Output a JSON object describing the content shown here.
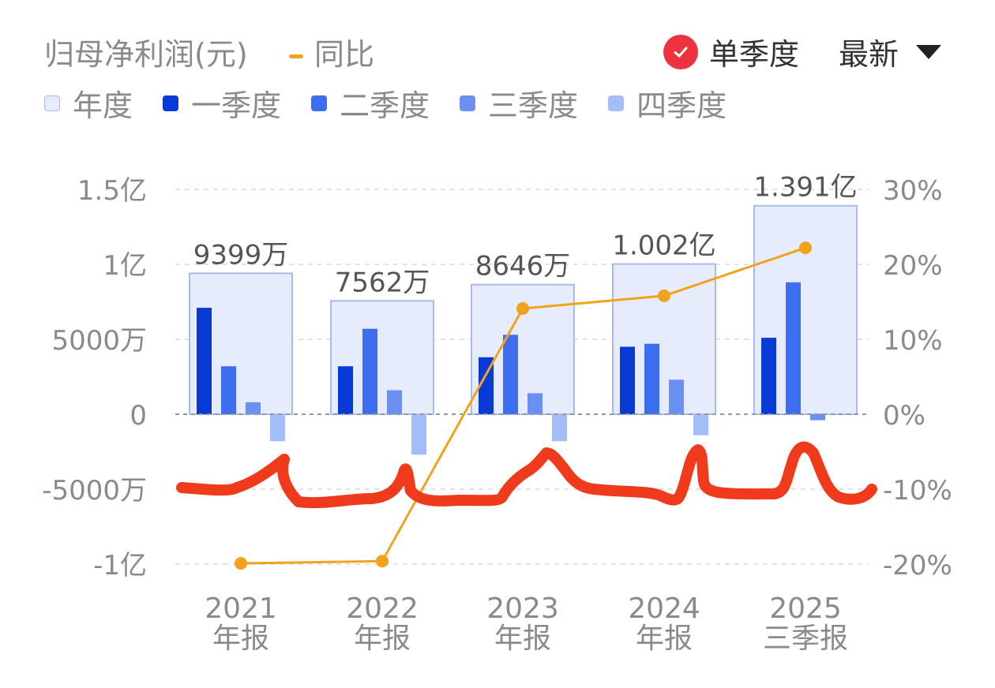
{
  "header": {
    "title": "归母净利润(元)",
    "yoy_label": "同比",
    "single_quarter_label": "单季度",
    "latest_label": "最新"
  },
  "legend": [
    {
      "label": "年度",
      "color": "#e6ecfb",
      "border": "#a9bce6"
    },
    {
      "label": "一季度",
      "color": "#0a3ad6"
    },
    {
      "label": "二季度",
      "color": "#3e6ef0"
    },
    {
      "label": "三季度",
      "color": "#6a90f2"
    },
    {
      "label": "四季度",
      "color": "#a3bdf8"
    }
  ],
  "colors": {
    "annual_fill": "#e6ecfb",
    "annual_border": "#a9bce6",
    "q1": "#0a3ad6",
    "q2": "#3e6ef0",
    "q3": "#6a90f2",
    "q4": "#a3bdf8",
    "yoy_line": "#f2a31c",
    "check_red": "#ee3340",
    "annotation_red": "#f03a1c"
  },
  "chart_data": {
    "type": "bar",
    "categories": [
      "2021\n年报",
      "2022\n年报",
      "2023\n年报",
      "2024\n年报",
      "2025\n三季报"
    ],
    "left_axis": {
      "unit": "元",
      "ylim": [
        -100000000,
        150000000
      ],
      "ticks": [
        150000000,
        100000000,
        50000000,
        0,
        -50000000,
        -100000000
      ],
      "tick_labels": [
        "1.5亿",
        "1亿",
        "5000万",
        "0",
        "-5000万",
        "-1亿"
      ]
    },
    "right_axis": {
      "unit": "%",
      "ylim": [
        -20,
        30
      ],
      "ticks": [
        30,
        20,
        10,
        0,
        -10,
        -20
      ],
      "tick_labels": [
        "30%",
        "20%",
        "10%",
        "0%",
        "-10%",
        "-20%"
      ]
    },
    "annual": {
      "values": [
        93990000,
        75620000,
        86460000,
        100200000,
        139100000
      ],
      "labels": [
        "9399万",
        "7562万",
        "8646万",
        "1.002亿",
        "1.391亿"
      ]
    },
    "series": [
      {
        "name": "一季度",
        "values": [
          71000000,
          32000000,
          38000000,
          45000000,
          51000000
        ]
      },
      {
        "name": "二季度",
        "values": [
          32000000,
          57000000,
          53000000,
          47000000,
          88000000
        ]
      },
      {
        "name": "三季度",
        "values": [
          8000000,
          16000000,
          14000000,
          23000000,
          -4000000
        ]
      },
      {
        "name": "四季度",
        "values": [
          -18000000,
          -27000000,
          -18000000,
          -14000000,
          null
        ]
      }
    ],
    "yoy": {
      "name": "同比",
      "values": [
        -19.9,
        -19.6,
        14.1,
        15.8,
        22.2
      ]
    },
    "grid": "dashed-horizontal",
    "legend_position": "top-left"
  }
}
